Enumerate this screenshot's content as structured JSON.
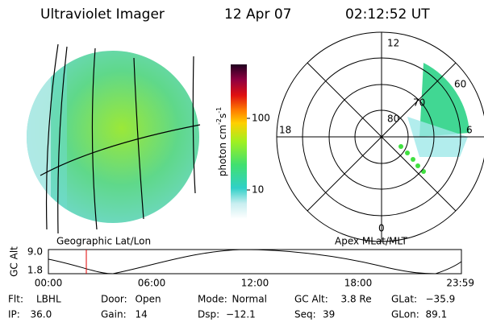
{
  "header": {
    "instrument": "Ultraviolet Imager",
    "date": "12 Apr 07",
    "time": "02:12:52 UT"
  },
  "colorbar": {
    "label": [
      "photon cm",
      "-2",
      "s",
      "-1"
    ],
    "ticks": [
      "100",
      "10"
    ]
  },
  "polar": {
    "mlt_labels": [
      "12",
      "18",
      "6",
      "0"
    ],
    "lat_labels": [
      "80",
      "70",
      "60"
    ]
  },
  "captions": {
    "left": "Geographic Lat/Lon",
    "right": "Apex MLat/MLT"
  },
  "altitude": {
    "axis_label": "GC Alt",
    "y_labels": [
      "9.0",
      "1.8"
    ],
    "time_labels": [
      "00:00",
      "06:00",
      "12:00",
      "18:00",
      "23:59"
    ]
  },
  "footer": [
    [
      {
        "label": "Flt:",
        "value": "LBHL"
      },
      {
        "label": "Door:",
        "value": "Open"
      },
      {
        "label": "Mode:",
        "value": "Normal"
      },
      {
        "label": "GC Alt:",
        "value": "3.8 Re"
      },
      {
        "label": "GLat:",
        "value": "−35.9"
      }
    ],
    [
      {
        "label": "IP:",
        "value": "36.0"
      },
      {
        "label": "Gain:",
        "value": "14"
      },
      {
        "label": "Dsp:",
        "value": "−12.1"
      },
      {
        "label": "Seq:",
        "value": "39"
      },
      {
        "label": "GLon:",
        "value": "89.1"
      }
    ]
  ]
}
